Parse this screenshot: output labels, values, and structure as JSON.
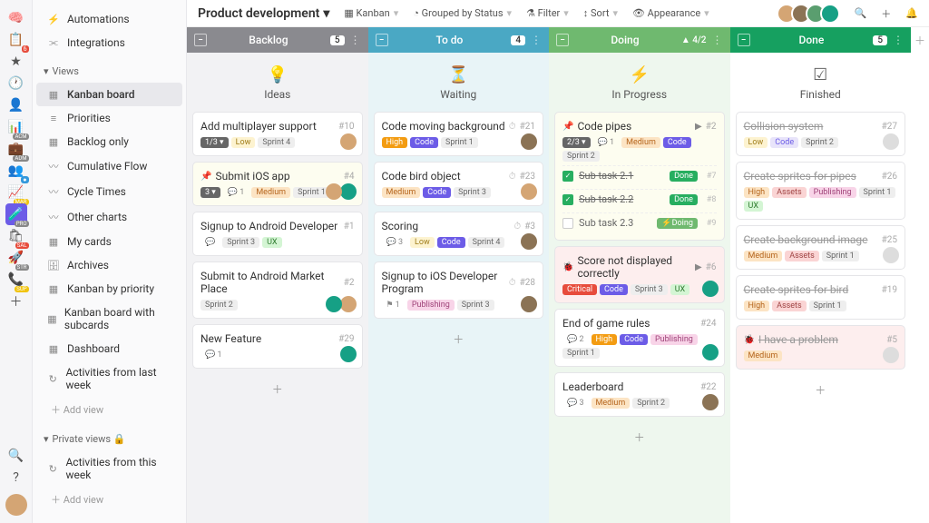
{
  "rail": {
    "items": [
      {
        "icon": "🧠",
        "badge": null
      },
      {
        "icon": "📋",
        "badge": "6",
        "bcol": "#e74c3c"
      },
      {
        "icon": "★",
        "badge": null
      },
      {
        "icon": "🕐",
        "badge": null
      },
      {
        "icon": "👤",
        "badge": null
      },
      {
        "icon": "📊",
        "label": "ACM"
      },
      {
        "icon": "💼",
        "label": "ADM"
      },
      {
        "icon": "👥",
        "badge": "●",
        "bcol": "#3498db"
      },
      {
        "icon": "📈",
        "label": "MAR",
        "bcol": "#f1c40f"
      },
      {
        "icon": "🧪",
        "active": true,
        "label": "PRO"
      },
      {
        "icon": "🛍",
        "label": "SAL",
        "bcol": "#e74c3c"
      },
      {
        "icon": "🚀",
        "label": "STR"
      },
      {
        "icon": "📞",
        "label": "SUP",
        "bcol": "#f1c40f"
      },
      {
        "icon": "＋"
      }
    ],
    "bottom": [
      {
        "icon": "🔍"
      },
      {
        "icon": "?"
      }
    ]
  },
  "sidebar": {
    "top": [
      {
        "icon": "⚡",
        "label": "Automations"
      },
      {
        "icon": "⫘",
        "label": "Integrations"
      }
    ],
    "views_hdr": "Views",
    "views": [
      {
        "icon": "▦",
        "label": "Kanban board",
        "sel": true
      },
      {
        "icon": "≡",
        "label": "Priorities"
      },
      {
        "icon": "▦",
        "label": "Backlog only"
      },
      {
        "icon": "〰",
        "label": "Cumulative Flow"
      },
      {
        "icon": "〰",
        "label": "Cycle Times"
      },
      {
        "icon": "〰",
        "label": "Other charts"
      },
      {
        "icon": "▦",
        "label": "My cards"
      },
      {
        "icon": "🗄",
        "label": "Archives"
      },
      {
        "icon": "▦",
        "label": "Kanban by priority"
      },
      {
        "icon": "▦",
        "label": "Kanban board with subcards"
      },
      {
        "icon": "▦",
        "label": "Dashboard"
      },
      {
        "icon": "↻",
        "label": "Activities from last week"
      }
    ],
    "add_view": "Add view",
    "private_hdr": "Private views 🔒",
    "private": [
      {
        "icon": "↻",
        "label": "Activities from this week"
      }
    ]
  },
  "topbar": {
    "title": "Product development",
    "controls": [
      {
        "icon": "▦",
        "label": "Kanban"
      },
      {
        "icon": "◔",
        "label": "Grouped by Status"
      },
      {
        "icon": "⚗",
        "label": "Filter"
      },
      {
        "icon": "↕",
        "label": "Sort"
      },
      {
        "icon": "👁",
        "label": "Appearance"
      }
    ],
    "avatars": [
      "#d4a574",
      "#8b7355",
      "#5a9e6f",
      "#16a085"
    ]
  },
  "columns": [
    {
      "name": "Backlog",
      "count": "5",
      "hdcol": "#8a8a8f",
      "bg": "#f2f2f4",
      "sub_icon": "💡",
      "sub_label": "Ideas",
      "cards": [
        {
          "title": "Add multiplayer support",
          "num": "#10",
          "tags": [
            {
              "t": "1/3 ▾",
              "c": "#666",
              "tc": "#fff"
            },
            {
              "t": "Low",
              "c": "#fdf3d0",
              "tc": "#a07d1a"
            },
            {
              "t": "Sprint 4",
              "c": "#eee",
              "tc": "#666"
            }
          ],
          "av": [
            "#d4a574"
          ]
        },
        {
          "title": "Submit iOS app",
          "num": "#4",
          "pin": true,
          "hl": true,
          "tags": [
            {
              "t": "3 ▾",
              "c": "#666",
              "tc": "#fff"
            },
            {
              "t": "💬 1",
              "c": "transparent",
              "tc": "#888"
            },
            {
              "t": "Medium",
              "c": "#fce4c4",
              "tc": "#b5651d"
            },
            {
              "t": "Sprint 1",
              "c": "#eee",
              "tc": "#666"
            }
          ],
          "av": [
            "#16a085",
            "#d4a574"
          ]
        },
        {
          "title": "Signup to Android Developer",
          "num": "#1",
          "tags": [
            {
              "t": "💬",
              "c": "transparent",
              "tc": "#888"
            },
            {
              "t": "Sprint 3",
              "c": "#eee",
              "tc": "#666"
            },
            {
              "t": "UX",
              "c": "#d4f5d4",
              "tc": "#2d7a2d"
            }
          ]
        },
        {
          "title": "Submit to Android Market Place",
          "num": "#2",
          "tags": [
            {
              "t": "Sprint 2",
              "c": "#eee",
              "tc": "#666"
            }
          ],
          "av": [
            "#d4a574",
            "#16a085"
          ]
        },
        {
          "title": "New Feature",
          "num": "#29",
          "tags": [
            {
              "t": "💬 1",
              "c": "transparent",
              "tc": "#888"
            }
          ],
          "av": [
            "#16a085"
          ]
        }
      ]
    },
    {
      "name": "To do",
      "count": "4",
      "hdcol": "#4aa8c4",
      "bg": "#e8f4f7",
      "sub_icon": "⏳",
      "sub_label": "Waiting",
      "cards": [
        {
          "title": "Code moving background",
          "num": "#21",
          "clock": true,
          "tags": [
            {
              "t": "High",
              "c": "#f39c12",
              "tc": "#fff"
            },
            {
              "t": "Code",
              "c": "#6c5ce7",
              "tc": "#fff"
            },
            {
              "t": "Sprint 1",
              "c": "#eee",
              "tc": "#666"
            }
          ],
          "av": [
            "#8b7355"
          ]
        },
        {
          "title": "Code bird object",
          "num": "#23",
          "clock": true,
          "tags": [
            {
              "t": "Medium",
              "c": "#fce4c4",
              "tc": "#b5651d"
            },
            {
              "t": "Code",
              "c": "#6c5ce7",
              "tc": "#fff"
            },
            {
              "t": "Sprint 3",
              "c": "#eee",
              "tc": "#666"
            }
          ],
          "av": [
            "#d4a574"
          ]
        },
        {
          "title": "Scoring",
          "num": "#3",
          "clock": true,
          "tags": [
            {
              "t": "💬 3",
              "c": "transparent",
              "tc": "#888"
            },
            {
              "t": "Low",
              "c": "#fdf3d0",
              "tc": "#a07d1a"
            },
            {
              "t": "Code",
              "c": "#6c5ce7",
              "tc": "#fff"
            },
            {
              "t": "Sprint 4",
              "c": "#eee",
              "tc": "#666"
            }
          ],
          "av": [
            "#8b7355"
          ]
        },
        {
          "title": "Signup to iOS Developer Program",
          "num": "#28",
          "clock": true,
          "tags": [
            {
              "t": "⚑ 1",
              "c": "transparent",
              "tc": "#888"
            },
            {
              "t": "Publishing",
              "c": "#f8d4e8",
              "tc": "#a0447a"
            },
            {
              "t": "Sprint 3",
              "c": "#eee",
              "tc": "#666"
            }
          ],
          "av": [
            "#8b7355"
          ]
        }
      ]
    },
    {
      "name": "Doing",
      "count": null,
      "warn": "▲ 4/2",
      "hdcol": "#6fb96f",
      "bg": "#eef7ee",
      "sub_icon": "⚡",
      "sub_label": "In Progress",
      "cards": [
        {
          "title": "Code pipes",
          "num": "#2",
          "pin": true,
          "play": true,
          "hl": true,
          "tags": [
            {
              "t": "2/3 ▾",
              "c": "#666",
              "tc": "#fff"
            },
            {
              "t": "💬 1",
              "c": "transparent",
              "tc": "#888"
            },
            {
              "t": "Medium",
              "c": "#fce4c4",
              "tc": "#b5651d"
            },
            {
              "t": "Code",
              "c": "#6c5ce7",
              "tc": "#fff"
            },
            {
              "t": "Sprint 2",
              "c": "#eee",
              "tc": "#666"
            }
          ],
          "subs": [
            {
              "t": "Sub task 2.1",
              "done": true,
              "st": "Done",
              "sc": "#27ae60",
              "num": "#7"
            },
            {
              "t": "Sub task 2.2",
              "done": true,
              "st": "Done",
              "sc": "#27ae60",
              "num": "#8"
            },
            {
              "t": "Sub task 2.3",
              "done": false,
              "st": "⚡Doing",
              "sc": "#6fb96f",
              "num": "#9"
            }
          ]
        },
        {
          "title": "Score not displayed correctly",
          "num": "#6",
          "bug": true,
          "play": true,
          "err": true,
          "tags": [
            {
              "t": "Critical",
              "c": "#e74c3c",
              "tc": "#fff"
            },
            {
              "t": "Code",
              "c": "#6c5ce7",
              "tc": "#fff"
            },
            {
              "t": "Sprint 3",
              "c": "#eee",
              "tc": "#666"
            },
            {
              "t": "UX",
              "c": "#d4f5d4",
              "tc": "#2d7a2d"
            }
          ],
          "av": [
            "#16a085"
          ]
        },
        {
          "title": "End of game rules",
          "num": "#24",
          "tags": [
            {
              "t": "💬 2",
              "c": "transparent",
              "tc": "#888"
            },
            {
              "t": "High",
              "c": "#f39c12",
              "tc": "#fff"
            },
            {
              "t": "Code",
              "c": "#6c5ce7",
              "tc": "#fff"
            },
            {
              "t": "Publishing",
              "c": "#f8d4e8",
              "tc": "#a0447a"
            },
            {
              "t": "Sprint 1",
              "c": "#eee",
              "tc": "#666"
            }
          ],
          "av": [
            "#16a085"
          ]
        },
        {
          "title": "Leaderboard",
          "num": "#22",
          "tags": [
            {
              "t": "💬 3",
              "c": "transparent",
              "tc": "#888"
            },
            {
              "t": "Medium",
              "c": "#fce4c4",
              "tc": "#b5651d"
            },
            {
              "t": "Sprint 2",
              "c": "#eee",
              "tc": "#666"
            }
          ],
          "av": [
            "#8b7355"
          ]
        }
      ]
    },
    {
      "name": "Done",
      "count": "5",
      "hdcol": "#16a060",
      "bg": "#ffffff",
      "sub_icon": "☑",
      "sub_label": "Finished",
      "cards": [
        {
          "title": "Collision system",
          "num": "#27",
          "done": true,
          "tags": [
            {
              "t": "Low",
              "c": "#fdf3d0",
              "tc": "#a07d1a"
            },
            {
              "t": "Code",
              "c": "#e8e4fa",
              "tc": "#6c5ce7"
            },
            {
              "t": "Sprint 2",
              "c": "#eee",
              "tc": "#666"
            }
          ],
          "av": [
            "#ddd"
          ]
        },
        {
          "title": "Create sprites for pipes",
          "num": "#26",
          "done": true,
          "tags": [
            {
              "t": "High",
              "c": "#fce4c4",
              "tc": "#b5651d"
            },
            {
              "t": "Assets",
              "c": "#fad4d4",
              "tc": "#a04444"
            },
            {
              "t": "Publishing",
              "c": "#f8d4e8",
              "tc": "#a0447a"
            },
            {
              "t": "Sprint 1",
              "c": "#eee",
              "tc": "#666"
            },
            {
              "t": "UX",
              "c": "#d4f5d4",
              "tc": "#2d7a2d"
            }
          ]
        },
        {
          "title": "Create background image",
          "num": "#25",
          "done": true,
          "tags": [
            {
              "t": "Medium",
              "c": "#fce4c4",
              "tc": "#b5651d"
            },
            {
              "t": "Assets",
              "c": "#fad4d4",
              "tc": "#a04444"
            },
            {
              "t": "Sprint 1",
              "c": "#eee",
              "tc": "#666"
            }
          ],
          "av": [
            "#ddd"
          ]
        },
        {
          "title": "Create sprites for bird",
          "num": "#19",
          "done": true,
          "tags": [
            {
              "t": "High",
              "c": "#fce4c4",
              "tc": "#b5651d"
            },
            {
              "t": "Assets",
              "c": "#fad4d4",
              "tc": "#a04444"
            },
            {
              "t": "Sprint 1",
              "c": "#eee",
              "tc": "#666"
            }
          ]
        },
        {
          "title": "I have a problem",
          "num": "#5",
          "done": true,
          "bug": true,
          "err": true,
          "tags": [
            {
              "t": "Medium",
              "c": "#fce4c4",
              "tc": "#b5651d"
            }
          ],
          "av": [
            "#ddd"
          ]
        }
      ]
    }
  ]
}
